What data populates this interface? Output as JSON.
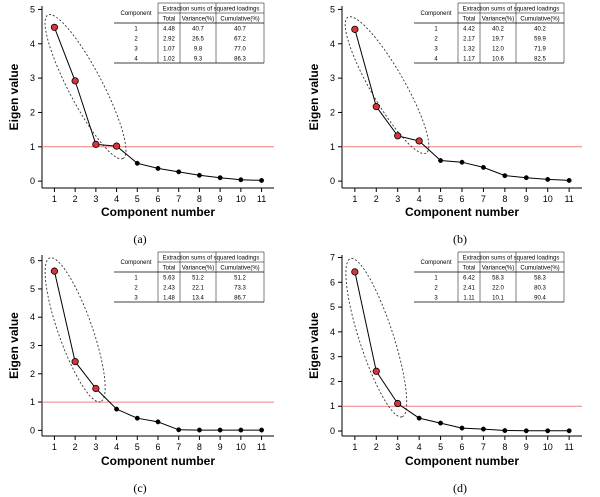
{
  "colors": {
    "line": "#000000",
    "point_fill": "#000000",
    "highlight_fill": "#d9343a",
    "threshold": "#f08080",
    "ellipse": "#333333"
  },
  "chart_data": [
    {
      "type": "line",
      "panel_label": "(a)",
      "xlabel": "Component number",
      "ylabel": "Eigen value",
      "x": [
        1,
        2,
        3,
        4,
        5,
        6,
        7,
        8,
        9,
        10,
        11
      ],
      "values": [
        4.48,
        2.92,
        1.07,
        1.02,
        0.52,
        0.37,
        0.27,
        0.17,
        0.1,
        0.04,
        0.02
      ],
      "highlighted_count": 4,
      "threshold": 1,
      "ylim": [
        -0.2,
        5.1
      ],
      "yticks": [
        0,
        1,
        2,
        3,
        4,
        5
      ],
      "xlim": [
        0.4,
        11.6
      ],
      "table": {
        "header_top": "Extraction sums of squared loadings",
        "header_component": "Component",
        "columns": [
          "Total",
          "Variance(%)",
          "Cumulative(%)"
        ],
        "rows": [
          [
            "1",
            "4.48",
            "40.7",
            "40.7"
          ],
          [
            "2",
            "2.92",
            "26.5",
            "67.2"
          ],
          [
            "3",
            "1.07",
            "9.8",
            "77.0"
          ],
          [
            "4",
            "1.02",
            "9.3",
            "86.3"
          ]
        ]
      }
    },
    {
      "type": "line",
      "panel_label": "(b)",
      "xlabel": "Component number",
      "ylabel": "Eigen value",
      "x": [
        1,
        2,
        3,
        4,
        5,
        6,
        7,
        8,
        9,
        10,
        11
      ],
      "values": [
        4.42,
        2.17,
        1.32,
        1.17,
        0.6,
        0.55,
        0.4,
        0.16,
        0.1,
        0.05,
        0.02
      ],
      "highlighted_count": 4,
      "threshold": 1,
      "ylim": [
        -0.2,
        5.1
      ],
      "yticks": [
        0,
        1,
        2,
        3,
        4,
        5
      ],
      "xlim": [
        0.4,
        11.6
      ],
      "table": {
        "header_top": "Extraction sums of squared loadings",
        "header_component": "Component",
        "columns": [
          "Total",
          "Variance(%)",
          "Cumulative(%)"
        ],
        "rows": [
          [
            "1",
            "4.42",
            "40.2",
            "40.2"
          ],
          [
            "2",
            "2.17",
            "19.7",
            "59.9"
          ],
          [
            "3",
            "1.32",
            "12.0",
            "71.9"
          ],
          [
            "4",
            "1.17",
            "10.6",
            "82.5"
          ]
        ]
      }
    },
    {
      "type": "line",
      "panel_label": "(c)",
      "xlabel": "Component number",
      "ylabel": "Eigen value",
      "x": [
        1,
        2,
        3,
        4,
        5,
        6,
        7,
        8,
        9,
        10,
        11
      ],
      "values": [
        5.63,
        2.43,
        1.48,
        0.75,
        0.43,
        0.3,
        0.02,
        0.01,
        0.01,
        0.01,
        0.01
      ],
      "highlighted_count": 3,
      "threshold": 1,
      "ylim": [
        -0.2,
        6.2
      ],
      "yticks": [
        0,
        1,
        2,
        3,
        4,
        5,
        6
      ],
      "xlim": [
        0.4,
        11.6
      ],
      "table": {
        "header_top": "Extraction sums of squared loadings",
        "header_component": "Component",
        "columns": [
          "Total",
          "Variance(%)",
          "Cumulative(%)"
        ],
        "rows": [
          [
            "1",
            "5.63",
            "51.2",
            "51.2"
          ],
          [
            "2",
            "2.43",
            "22.1",
            "73.3"
          ],
          [
            "3",
            "1.48",
            "13.4",
            "86.7"
          ]
        ]
      }
    },
    {
      "type": "line",
      "panel_label": "(d)",
      "xlabel": "Component number",
      "ylabel": "Eigen value",
      "x": [
        1,
        2,
        3,
        4,
        5,
        6,
        7,
        8,
        9,
        10,
        11
      ],
      "values": [
        6.42,
        2.41,
        1.11,
        0.52,
        0.32,
        0.12,
        0.08,
        0.02,
        0.01,
        0.01,
        0.01
      ],
      "highlighted_count": 3,
      "threshold": 1,
      "ylim": [
        -0.2,
        7.1
      ],
      "yticks": [
        0,
        1,
        2,
        3,
        4,
        5,
        6,
        7
      ],
      "xlim": [
        0.4,
        11.6
      ],
      "table": {
        "header_top": "Extraction sums of squared loadings",
        "header_component": "Component",
        "columns": [
          "Total",
          "Variance(%)",
          "Cumulative(%)"
        ],
        "rows": [
          [
            "1",
            "6.42",
            "58.3",
            "58.3"
          ],
          [
            "2",
            "2.41",
            "22.0",
            "80.3"
          ],
          [
            "3",
            "1.11",
            "10.1",
            "90.4"
          ]
        ]
      }
    }
  ]
}
